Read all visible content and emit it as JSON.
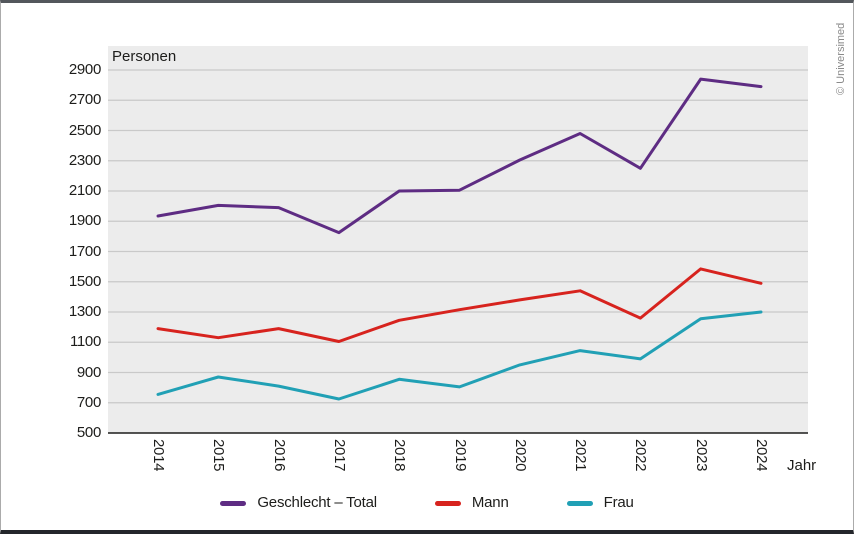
{
  "page": {
    "copyright": "© Universimed",
    "colors": {
      "top_border": "#53575c",
      "bottom_border": "#24262b",
      "side_border": "#ababab",
      "plot_background": "#ececec",
      "gridline": "#c9c9c9",
      "axis_line": "#1d1d1b",
      "text": "#1d1d1b",
      "copyright_text": "#8a8a8a"
    }
  },
  "chart_data": {
    "type": "line",
    "title": "",
    "ylabel": "Personen",
    "xlabel": "Jahr",
    "categories": [
      "2014",
      "2015",
      "2016",
      "2017",
      "2018",
      "2019",
      "2020",
      "2021",
      "2022",
      "2023",
      "2024"
    ],
    "ylim": [
      500,
      2900
    ],
    "yticks": [
      500,
      700,
      900,
      1100,
      1300,
      1500,
      1700,
      1900,
      2100,
      2300,
      2500,
      2700,
      2900
    ],
    "grid": true,
    "legend_position": "bottom",
    "series": [
      {
        "name": "Geschlecht – Total",
        "color": "#5e2c83",
        "values": [
          1935,
          2005,
          1990,
          1825,
          2100,
          2105,
          2305,
          2480,
          2250,
          2840,
          2790
        ]
      },
      {
        "name": "Mann",
        "color": "#d7231e",
        "values": [
          1190,
          1130,
          1190,
          1105,
          1245,
          1315,
          1380,
          1440,
          1260,
          1585,
          1490
        ]
      },
      {
        "name": "Frau",
        "color": "#21a0b5",
        "values": [
          755,
          870,
          810,
          725,
          855,
          805,
          950,
          1045,
          990,
          1255,
          1300
        ]
      }
    ]
  }
}
